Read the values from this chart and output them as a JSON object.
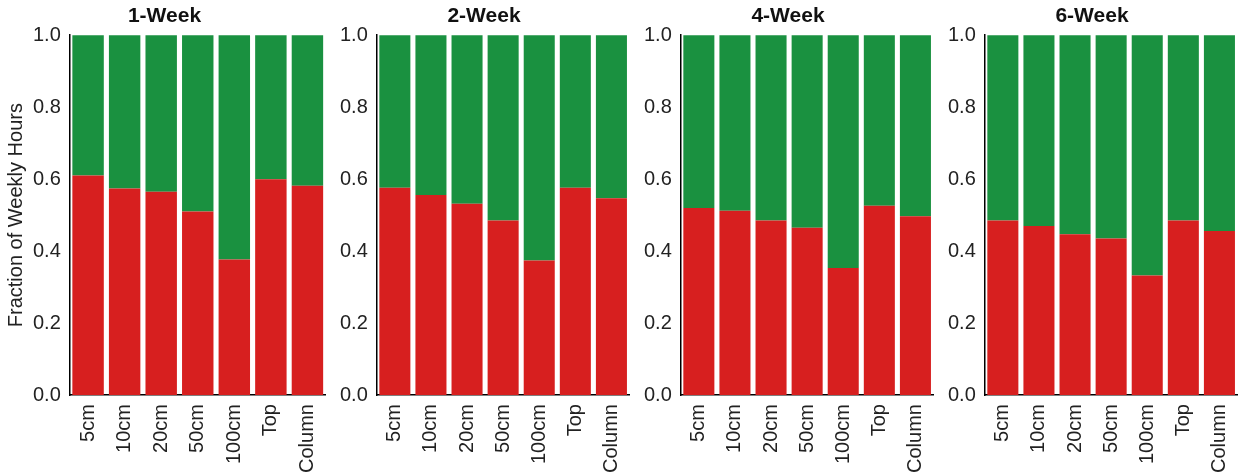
{
  "chart_data": [
    {
      "type": "bar",
      "title": "1-Week",
      "ylabel": "Fraction of Weekly Hours",
      "categories": [
        "5cm",
        "10cm",
        "20cm",
        "50cm",
        "100cm",
        "Top",
        "Column"
      ],
      "stacked": true,
      "ylim": [
        0,
        1
      ],
      "yticks": [
        {
          "value": 0,
          "label": "0.0"
        },
        {
          "value": 0.2,
          "label": "0.2"
        },
        {
          "value": 0.4,
          "label": "0.4"
        },
        {
          "value": 0.6,
          "label": "0.6"
        },
        {
          "value": 0.8,
          "label": "0.8"
        },
        {
          "value": 1,
          "label": "1.0"
        }
      ],
      "grid": false,
      "legend": false,
      "series": [
        {
          "color": "#d71f1f",
          "values": [
            0.61,
            0.574,
            0.565,
            0.51,
            0.377,
            0.6,
            0.582
          ]
        },
        {
          "color": "#1a9140",
          "values": [
            0.39,
            0.426,
            0.435,
            0.49,
            0.623,
            0.4,
            0.418
          ]
        }
      ]
    },
    {
      "type": "bar",
      "title": "2-Week",
      "categories": [
        "5cm",
        "10cm",
        "20cm",
        "50cm",
        "100cm",
        "Top",
        "Column"
      ],
      "stacked": true,
      "ylim": [
        0,
        1
      ],
      "yticks": [
        {
          "value": 0,
          "label": "0.0"
        },
        {
          "value": 0.2,
          "label": "0.2"
        },
        {
          "value": 0.4,
          "label": "0.4"
        },
        {
          "value": 0.6,
          "label": "0.6"
        },
        {
          "value": 0.8,
          "label": "0.8"
        },
        {
          "value": 1,
          "label": "1.0"
        }
      ],
      "grid": false,
      "legend": false,
      "series": [
        {
          "color": "#d71f1f",
          "values": [
            0.576,
            0.556,
            0.532,
            0.485,
            0.374,
            0.576,
            0.547
          ]
        },
        {
          "color": "#1a9140",
          "values": [
            0.424,
            0.444,
            0.468,
            0.515,
            0.626,
            0.424,
            0.453
          ]
        }
      ]
    },
    {
      "type": "bar",
      "title": "4-Week",
      "categories": [
        "5cm",
        "10cm",
        "20cm",
        "50cm",
        "100cm",
        "Top",
        "Column"
      ],
      "stacked": true,
      "ylim": [
        0,
        1
      ],
      "yticks": [
        {
          "value": 0,
          "label": "0.0"
        },
        {
          "value": 0.2,
          "label": "0.2"
        },
        {
          "value": 0.4,
          "label": "0.4"
        },
        {
          "value": 0.6,
          "label": "0.6"
        },
        {
          "value": 0.8,
          "label": "0.8"
        },
        {
          "value": 1,
          "label": "1.0"
        }
      ],
      "grid": false,
      "legend": false,
      "series": [
        {
          "color": "#d71f1f",
          "values": [
            0.52,
            0.512,
            0.485,
            0.465,
            0.353,
            0.526,
            0.497
          ]
        },
        {
          "color": "#1a9140",
          "values": [
            0.48,
            0.488,
            0.515,
            0.535,
            0.647,
            0.474,
            0.503
          ]
        }
      ]
    },
    {
      "type": "bar",
      "title": "6-Week",
      "categories": [
        "5cm",
        "10cm",
        "20cm",
        "50cm",
        "100cm",
        "Top",
        "Column"
      ],
      "stacked": true,
      "ylim": [
        0,
        1
      ],
      "yticks": [
        {
          "value": 0,
          "label": "0.0"
        },
        {
          "value": 0.2,
          "label": "0.2"
        },
        {
          "value": 0.4,
          "label": "0.4"
        },
        {
          "value": 0.6,
          "label": "0.6"
        },
        {
          "value": 0.8,
          "label": "0.8"
        },
        {
          "value": 1,
          "label": "1.0"
        }
      ],
      "grid": false,
      "legend": false,
      "series": [
        {
          "color": "#d71f1f",
          "values": [
            0.485,
            0.47,
            0.447,
            0.435,
            0.332,
            0.485,
            0.456
          ]
        },
        {
          "color": "#1a9140",
          "values": [
            0.515,
            0.53,
            0.553,
            0.565,
            0.668,
            0.515,
            0.544
          ]
        }
      ]
    }
  ]
}
